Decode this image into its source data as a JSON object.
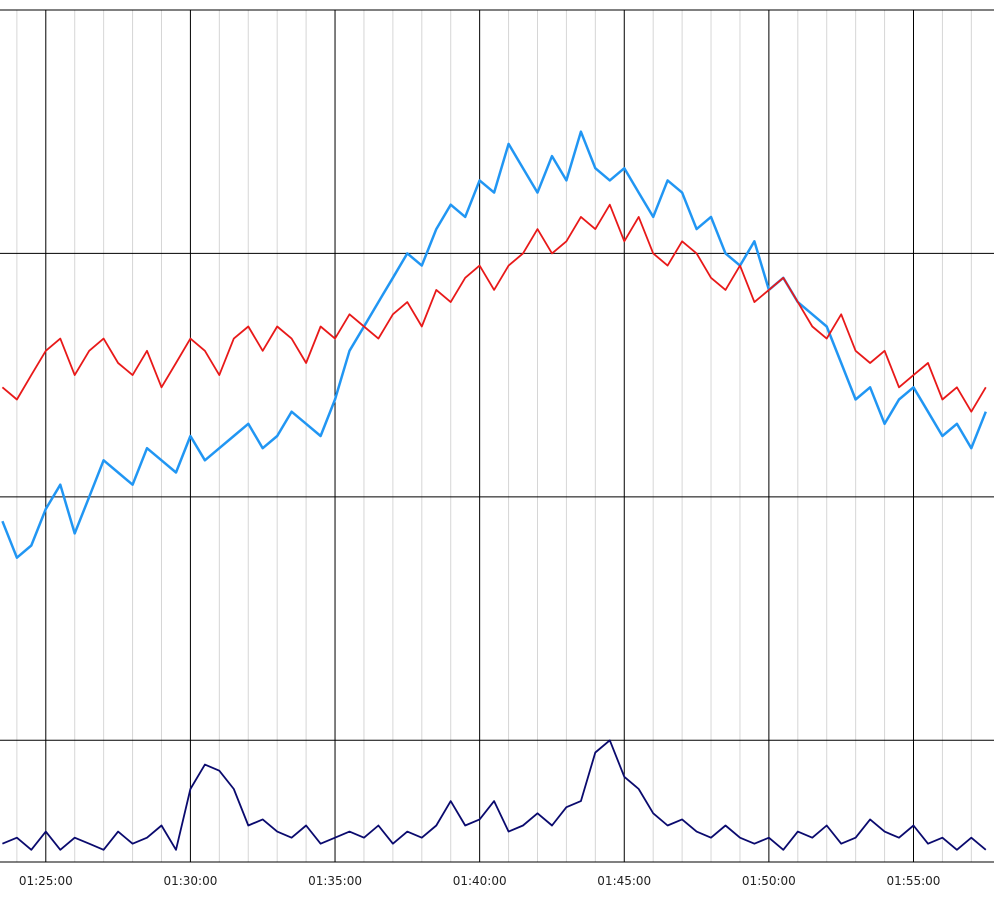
{
  "chart_data": {
    "type": "line",
    "title": "",
    "xlabel": "",
    "ylabel": "",
    "x_ticks": [
      "01:25:00",
      "01:30:00",
      "01:35:00",
      "01:40:00",
      "01:45:00",
      "01:50:00",
      "01:55:00"
    ],
    "x_range": [
      "01:23:25",
      "01:57:47"
    ],
    "minor_grid_interval_seconds": 60,
    "major_grid_interval_seconds": 300,
    "y_range": [
      0,
      7
    ],
    "y_gridlines": [
      1,
      3,
      5,
      7
    ],
    "y_tick_labels_shown": false,
    "legend": "none",
    "grid": true,
    "series": [
      {
        "color": "#2196F3",
        "x": [
          "01:23:30",
          "01:24:00",
          "01:24:30",
          "01:25:00",
          "01:25:30",
          "01:26:00",
          "01:26:30",
          "01:27:00",
          "01:27:30",
          "01:28:00",
          "01:28:30",
          "01:29:00",
          "01:29:30",
          "01:30:00",
          "01:30:30",
          "01:31:00",
          "01:31:30",
          "01:32:00",
          "01:32:30",
          "01:33:00",
          "01:33:30",
          "01:34:00",
          "01:34:30",
          "01:35:00",
          "01:35:30",
          "01:36:00",
          "01:36:30",
          "01:37:00",
          "01:37:30",
          "01:38:00",
          "01:38:30",
          "01:39:00",
          "01:39:30",
          "01:40:00",
          "01:40:30",
          "01:41:00",
          "01:41:30",
          "01:42:00",
          "01:42:30",
          "01:43:00",
          "01:43:30",
          "01:44:00",
          "01:44:30",
          "01:45:00",
          "01:45:30",
          "01:46:00",
          "01:46:30",
          "01:47:00",
          "01:47:30",
          "01:48:00",
          "01:48:30",
          "01:49:00",
          "01:49:30",
          "01:50:00",
          "01:50:30",
          "01:51:00",
          "01:51:30",
          "01:52:00",
          "01:52:30",
          "01:53:00",
          "01:53:30",
          "01:54:00",
          "01:54:30",
          "01:55:00",
          "01:55:30",
          "01:56:00",
          "01:56:30",
          "01:57:00",
          "01:57:30"
        ],
        "values": [
          2.8,
          2.5,
          2.6,
          2.9,
          3.1,
          2.7,
          3.0,
          3.3,
          3.2,
          3.1,
          3.4,
          3.3,
          3.2,
          3.5,
          3.3,
          3.4,
          3.5,
          3.6,
          3.4,
          3.5,
          3.7,
          3.6,
          3.5,
          3.8,
          4.2,
          4.4,
          4.6,
          4.8,
          5.0,
          4.9,
          5.2,
          5.4,
          5.3,
          5.6,
          5.5,
          5.9,
          5.7,
          5.5,
          5.8,
          5.6,
          6.0,
          5.7,
          5.6,
          5.7,
          5.5,
          5.3,
          5.6,
          5.5,
          5.2,
          5.3,
          5.0,
          4.9,
          5.1,
          4.7,
          4.8,
          4.6,
          4.5,
          4.4,
          4.1,
          3.8,
          3.9,
          3.6,
          3.8,
          3.9,
          3.7,
          3.5,
          3.6,
          3.4,
          3.7
        ]
      },
      {
        "color": "#E81919",
        "x": [
          "01:23:30",
          "01:24:00",
          "01:24:30",
          "01:25:00",
          "01:25:30",
          "01:26:00",
          "01:26:30",
          "01:27:00",
          "01:27:30",
          "01:28:00",
          "01:28:30",
          "01:29:00",
          "01:29:30",
          "01:30:00",
          "01:30:30",
          "01:31:00",
          "01:31:30",
          "01:32:00",
          "01:32:30",
          "01:33:00",
          "01:33:30",
          "01:34:00",
          "01:34:30",
          "01:35:00",
          "01:35:30",
          "01:36:00",
          "01:36:30",
          "01:37:00",
          "01:37:30",
          "01:38:00",
          "01:38:30",
          "01:39:00",
          "01:39:30",
          "01:40:00",
          "01:40:30",
          "01:41:00",
          "01:41:30",
          "01:42:00",
          "01:42:30",
          "01:43:00",
          "01:43:30",
          "01:44:00",
          "01:44:30",
          "01:45:00",
          "01:45:30",
          "01:46:00",
          "01:46:30",
          "01:47:00",
          "01:47:30",
          "01:48:00",
          "01:48:30",
          "01:49:00",
          "01:49:30",
          "01:50:00",
          "01:50:30",
          "01:51:00",
          "01:51:30",
          "01:52:00",
          "01:52:30",
          "01:53:00",
          "01:53:30",
          "01:54:00",
          "01:54:30",
          "01:55:00",
          "01:55:30",
          "01:56:00",
          "01:56:30",
          "01:57:00",
          "01:57:30"
        ],
        "values": [
          3.9,
          3.8,
          4.0,
          4.2,
          4.3,
          4.0,
          4.2,
          4.3,
          4.1,
          4.0,
          4.2,
          3.9,
          4.1,
          4.3,
          4.2,
          4.0,
          4.3,
          4.4,
          4.2,
          4.4,
          4.3,
          4.1,
          4.4,
          4.3,
          4.5,
          4.4,
          4.3,
          4.5,
          4.6,
          4.4,
          4.7,
          4.6,
          4.8,
          4.9,
          4.7,
          4.9,
          5.0,
          5.2,
          5.0,
          5.1,
          5.3,
          5.2,
          5.4,
          5.1,
          5.3,
          5.0,
          4.9,
          5.1,
          5.0,
          4.8,
          4.7,
          4.9,
          4.6,
          4.7,
          4.8,
          4.6,
          4.4,
          4.3,
          4.5,
          4.2,
          4.1,
          4.2,
          3.9,
          4.0,
          4.1,
          3.8,
          3.9,
          3.7,
          3.9
        ]
      },
      {
        "color": "#0A0A6E",
        "x": [
          "01:23:30",
          "01:24:00",
          "01:24:30",
          "01:25:00",
          "01:25:30",
          "01:26:00",
          "01:26:30",
          "01:27:00",
          "01:27:30",
          "01:28:00",
          "01:28:30",
          "01:29:00",
          "01:29:30",
          "01:30:00",
          "01:30:30",
          "01:31:00",
          "01:31:30",
          "01:32:00",
          "01:32:30",
          "01:33:00",
          "01:33:30",
          "01:34:00",
          "01:34:30",
          "01:35:00",
          "01:35:30",
          "01:36:00",
          "01:36:30",
          "01:37:00",
          "01:37:30",
          "01:38:00",
          "01:38:30",
          "01:39:00",
          "01:39:30",
          "01:40:00",
          "01:40:30",
          "01:41:00",
          "01:41:30",
          "01:42:00",
          "01:42:30",
          "01:43:00",
          "01:43:30",
          "01:44:00",
          "01:44:30",
          "01:45:00",
          "01:45:30",
          "01:46:00",
          "01:46:30",
          "01:47:00",
          "01:47:30",
          "01:48:00",
          "01:48:30",
          "01:49:00",
          "01:49:30",
          "01:50:00",
          "01:50:30",
          "01:51:00",
          "01:51:30",
          "01:52:00",
          "01:52:30",
          "01:53:00",
          "01:53:30",
          "01:54:00",
          "01:54:30",
          "01:55:00",
          "01:55:30",
          "01:56:00",
          "01:56:30",
          "01:57:00",
          "01:57:30"
        ],
        "values": [
          0.15,
          0.2,
          0.1,
          0.25,
          0.1,
          0.2,
          0.15,
          0.1,
          0.25,
          0.15,
          0.2,
          0.3,
          0.1,
          0.6,
          0.8,
          0.75,
          0.6,
          0.3,
          0.35,
          0.25,
          0.2,
          0.3,
          0.15,
          0.2,
          0.25,
          0.2,
          0.3,
          0.15,
          0.25,
          0.2,
          0.3,
          0.5,
          0.3,
          0.35,
          0.5,
          0.25,
          0.3,
          0.4,
          0.3,
          0.45,
          0.5,
          0.9,
          1.0,
          0.7,
          0.6,
          0.4,
          0.3,
          0.35,
          0.25,
          0.2,
          0.3,
          0.2,
          0.15,
          0.2,
          0.1,
          0.25,
          0.2,
          0.3,
          0.15,
          0.2,
          0.35,
          0.25,
          0.2,
          0.3,
          0.15,
          0.2,
          0.1,
          0.2,
          0.1
        ]
      }
    ]
  }
}
